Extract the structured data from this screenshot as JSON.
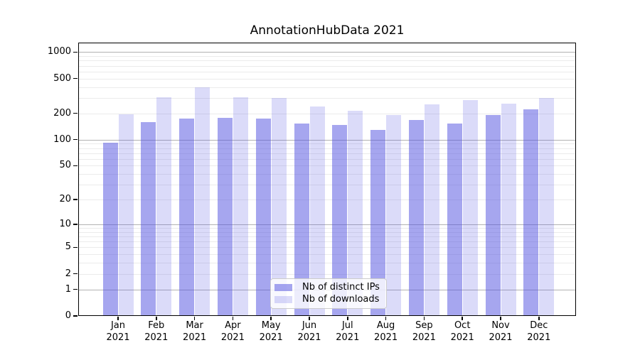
{
  "chart_data": {
    "type": "bar",
    "title": "AnnotationHubData 2021",
    "year_label": "2021",
    "categories": [
      "Jan",
      "Feb",
      "Mar",
      "Apr",
      "May",
      "Jun",
      "Jul",
      "Aug",
      "Sep",
      "Oct",
      "Nov",
      "Dec"
    ],
    "series": [
      {
        "name": "Nb of distinct IPs",
        "color_hex": "#5555e1",
        "alpha": 0.52,
        "values": [
          93,
          160,
          175,
          179,
          175,
          153,
          146,
          130,
          168,
          153,
          192,
          222
        ]
      },
      {
        "name": "Nb of downloads",
        "color_hex": "#5555e1",
        "alpha": 0.21,
        "values": [
          195,
          304,
          394,
          303,
          298,
          240,
          215,
          192,
          255,
          283,
          260,
          298
        ]
      }
    ],
    "y_scale": "log1p",
    "y_ticks": [
      0,
      1,
      2,
      5,
      10,
      20,
      50,
      100,
      200,
      500,
      1000
    ],
    "y_axis_top_value": 1300,
    "grid": true,
    "legend_position": "lower center",
    "colors": {
      "axis": "#000000",
      "grid_major": "#b2b2b2",
      "grid_minor": "#ebebeb",
      "background": "#ffffff",
      "bar_dark_displayed": "#a6a6ef",
      "bar_light_displayed": "#dbdbf8"
    }
  }
}
